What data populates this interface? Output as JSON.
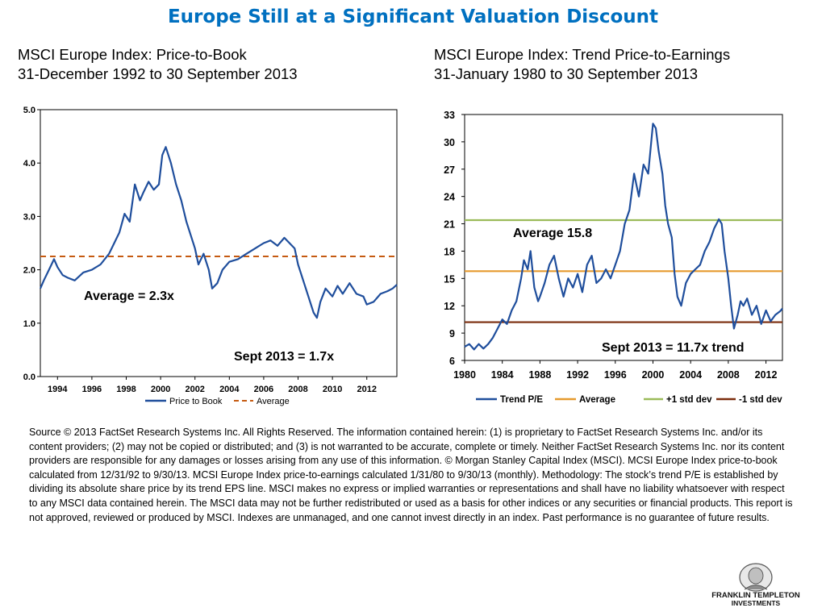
{
  "page": {
    "title": "Europe Still at a Significant Valuation Discount",
    "left_subtitle_1": "MSCI Europe Index: Price-to-Book",
    "left_subtitle_2": "31-December 1992 to 30 September 2013",
    "right_subtitle_1": "MSCI Europe Index: Trend Price-to-Earnings",
    "right_subtitle_2": "31-January 1980 to 30 September 2013",
    "source_text": "Source © 2013 FactSet Research Systems Inc. All Rights Reserved. The information contained herein: (1) is proprietary to FactSet Research Systems Inc. and/or its content providers; (2) may not be copied or distributed; and (3) is not warranted to be accurate, complete or timely. Neither FactSet Research Systems Inc. nor its content providers are responsible for any damages or losses arising from any use of this information. © Morgan Stanley Capital Index (MSCI). MCSI Europe Index price-to-book calculated from 12/31/92 to 9/30/13. MCSI Europe Index price-to-earnings calculated 1/31/80 to 9/30/13 (monthly). Methodology: The stock’s trend P/E is established by dividing its absolute share price by its trend EPS line. MSCI makes no express or implied warranties or representations and shall have no liability whatsoever with respect to any MSCI data contained herein. The MSCI data may not be further redistributed or used as a basis for other indices or any securities or financial products. This report is not approved, reviewed or produced by MSCI. Indexes are unmanaged, and one cannot invest directly in an index. Past performance is no guarantee of future results.",
    "logo_line_1": "FRANKLIN TEMPLETON",
    "logo_line_2": "INVESTMENTS"
  },
  "colors": {
    "title": "#0070c0",
    "series_line": "#1f4e9c",
    "average_dashed": "#c55a11",
    "average_pe": "#e69a2e",
    "plus_std": "#9bbb59",
    "minus_std": "#7b2c0c"
  },
  "chart_data": [
    {
      "id": "pb",
      "type": "line",
      "title": "MSCI Europe Index: Price-to-Book",
      "xlim": [
        1993,
        2013.75
      ],
      "ylim": [
        0,
        5
      ],
      "xticks": [
        1994,
        1996,
        1998,
        2000,
        2002,
        2004,
        2006,
        2008,
        2010,
        2012
      ],
      "xtick_labels": [
        "1994",
        "1996",
        "1998",
        "2000",
        "2002",
        "2004",
        "2006",
        "2008",
        "2010",
        "2012"
      ],
      "yticks": [
        0,
        1,
        2,
        3,
        4,
        5
      ],
      "ytick_labels": [
        "0.0",
        "1.0",
        "2.0",
        "3.0",
        "4.0",
        "5.0"
      ],
      "series": [
        {
          "name": "Price to Book",
          "x": [
            1993.0,
            1993.2,
            1993.5,
            1993.8,
            1994.0,
            1994.3,
            1994.6,
            1995.0,
            1995.5,
            1996.0,
            1996.5,
            1997.0,
            1997.3,
            1997.6,
            1997.9,
            1998.2,
            1998.5,
            1998.8,
            1999.0,
            1999.3,
            1999.6,
            1999.9,
            2000.1,
            2000.3,
            2000.6,
            2000.9,
            2001.2,
            2001.5,
            2001.8,
            2002.0,
            2002.2,
            2002.5,
            2002.8,
            2003.0,
            2003.3,
            2003.6,
            2004.0,
            2004.5,
            2005.0,
            2005.5,
            2006.0,
            2006.4,
            2006.8,
            2007.2,
            2007.5,
            2007.8,
            2008.0,
            2008.3,
            2008.6,
            2008.9,
            2009.1,
            2009.3,
            2009.6,
            2010.0,
            2010.3,
            2010.6,
            2011.0,
            2011.4,
            2011.8,
            2012.0,
            2012.4,
            2012.8,
            2013.2,
            2013.5,
            2013.75
          ],
          "values": [
            1.65,
            1.8,
            2.0,
            2.2,
            2.05,
            1.9,
            1.85,
            1.8,
            1.95,
            2.0,
            2.1,
            2.3,
            2.5,
            2.7,
            3.05,
            2.9,
            3.6,
            3.3,
            3.45,
            3.65,
            3.5,
            3.6,
            4.15,
            4.3,
            4.0,
            3.6,
            3.3,
            2.9,
            2.6,
            2.4,
            2.1,
            2.3,
            2.0,
            1.65,
            1.75,
            2.0,
            2.15,
            2.2,
            2.3,
            2.4,
            2.5,
            2.55,
            2.45,
            2.6,
            2.5,
            2.4,
            2.1,
            1.8,
            1.5,
            1.2,
            1.1,
            1.4,
            1.65,
            1.5,
            1.7,
            1.55,
            1.75,
            1.55,
            1.5,
            1.35,
            1.4,
            1.55,
            1.6,
            1.65,
            1.72
          ]
        },
        {
          "name": "Average",
          "x": [
            1993,
            2013.75
          ],
          "values": [
            2.25,
            2.25
          ]
        }
      ],
      "annotations": [
        "Average = 2.3x",
        "Sept 2013 = 1.7x"
      ],
      "legend_position": "bottom"
    },
    {
      "id": "pe",
      "type": "line",
      "title": "MSCI Europe Index: Trend Price-to-Earnings",
      "xlim": [
        1980,
        2013.75
      ],
      "ylim": [
        6,
        33
      ],
      "xticks": [
        1980,
        1984,
        1988,
        1992,
        1996,
        2000,
        2004,
        2008,
        2012
      ],
      "xtick_labels": [
        "1980",
        "1984",
        "1988",
        "1992",
        "1996",
        "2000",
        "2004",
        "2008",
        "2012"
      ],
      "yticks": [
        6,
        9,
        12,
        15,
        18,
        21,
        24,
        27,
        30,
        33
      ],
      "ytick_labels": [
        "6",
        "9",
        "12",
        "15",
        "18",
        "21",
        "24",
        "27",
        "30",
        "33"
      ],
      "series": [
        {
          "name": "Trend P/E",
          "x": [
            1980.0,
            1980.5,
            1981.0,
            1981.5,
            1982.0,
            1982.5,
            1983.0,
            1983.5,
            1984.0,
            1984.5,
            1985.0,
            1985.5,
            1986.0,
            1986.3,
            1986.7,
            1987.0,
            1987.4,
            1987.8,
            1988.0,
            1988.5,
            1989.0,
            1989.5,
            1990.0,
            1990.5,
            1991.0,
            1991.5,
            1992.0,
            1992.5,
            1993.0,
            1993.5,
            1994.0,
            1994.5,
            1995.0,
            1995.5,
            1996.0,
            1996.5,
            1997.0,
            1997.5,
            1998.0,
            1998.5,
            1999.0,
            1999.5,
            2000.0,
            2000.3,
            2000.6,
            2001.0,
            2001.3,
            2001.6,
            2002.0,
            2002.3,
            2002.6,
            2003.0,
            2003.5,
            2004.0,
            2004.5,
            2005.0,
            2005.5,
            2006.0,
            2006.5,
            2007.0,
            2007.3,
            2007.6,
            2008.0,
            2008.3,
            2008.6,
            2009.0,
            2009.3,
            2009.6,
            2010.0,
            2010.5,
            2011.0,
            2011.5,
            2012.0,
            2012.5,
            2013.0,
            2013.5,
            2013.75
          ],
          "values": [
            7.5,
            7.8,
            7.2,
            7.8,
            7.3,
            7.8,
            8.5,
            9.5,
            10.5,
            10.0,
            11.5,
            12.5,
            15.0,
            17.0,
            16.0,
            18.0,
            14.0,
            12.5,
            13.0,
            14.5,
            16.5,
            17.5,
            15.0,
            13.0,
            15.0,
            14.0,
            15.5,
            13.5,
            16.5,
            17.5,
            14.5,
            15.0,
            16.0,
            15.0,
            16.5,
            18.0,
            21.0,
            22.5,
            26.5,
            24.0,
            27.5,
            26.5,
            32.0,
            31.5,
            29.0,
            26.5,
            23.0,
            21.0,
            19.5,
            15.5,
            13.0,
            12.0,
            14.5,
            15.5,
            16.0,
            16.5,
            18.0,
            19.0,
            20.5,
            21.5,
            21.0,
            18.0,
            15.0,
            12.0,
            9.5,
            11.0,
            12.5,
            12.0,
            12.8,
            11.0,
            12.0,
            10.0,
            11.5,
            10.3,
            11.0,
            11.4,
            11.7
          ]
        },
        {
          "name": "Average",
          "x": [
            1980,
            2013.75
          ],
          "values": [
            15.8,
            15.8
          ]
        },
        {
          "name": "+1 std dev",
          "x": [
            1980,
            2013.75
          ],
          "values": [
            21.4,
            21.4
          ]
        },
        {
          "name": "-1 std dev",
          "x": [
            1980,
            2013.75
          ],
          "values": [
            10.2,
            10.2
          ]
        }
      ],
      "annotations": [
        "Average 15.8",
        "Sept 2013 = 11.7x trend"
      ],
      "legend_position": "bottom"
    }
  ]
}
